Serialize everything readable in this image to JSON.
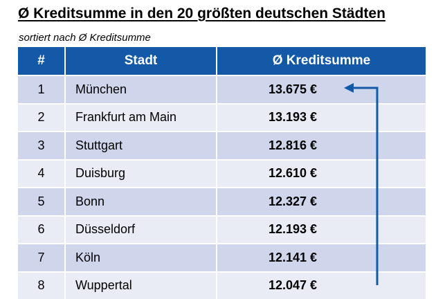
{
  "title": "Ø Kreditsumme in den 20 größten deutschen Städten",
  "subtitle": "sortiert nach Ø Kreditsumme",
  "table": {
    "headers": [
      "#",
      "Stadt",
      "Ø Kreditsumme"
    ],
    "rows": [
      {
        "rank": "1",
        "city": "München",
        "amount": "13.675 €"
      },
      {
        "rank": "2",
        "city": "Frankfurt am Main",
        "amount": "13.193 €"
      },
      {
        "rank": "3",
        "city": "Stuttgart",
        "amount": "12.816 €"
      },
      {
        "rank": "4",
        "city": "Duisburg",
        "amount": "12.610 €"
      },
      {
        "rank": "5",
        "city": "Bonn",
        "amount": "12.327 €"
      },
      {
        "rank": "6",
        "city": "Düsseldorf",
        "amount": "12.193 €"
      },
      {
        "rank": "7",
        "city": "Köln",
        "amount": "12.141 €"
      },
      {
        "rank": "8",
        "city": "Wuppertal",
        "amount": "12.047 €"
      }
    ]
  },
  "colors": {
    "header_bg": "#1458a8",
    "row_odd": "#cfd5ea",
    "row_even": "#e9ebf5",
    "arrow": "#1458a8"
  }
}
